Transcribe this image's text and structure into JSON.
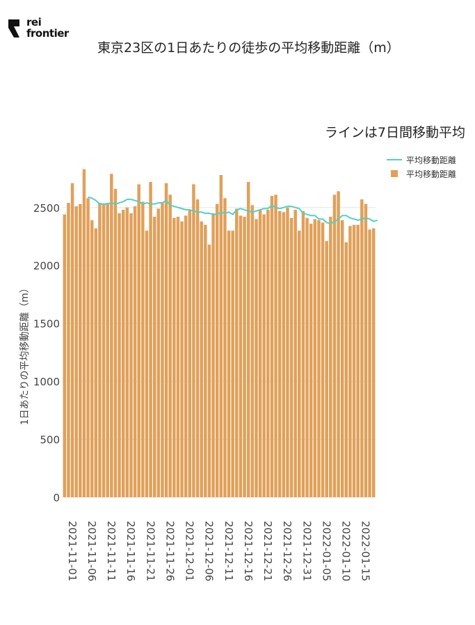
{
  "brand": {
    "name": "rei frontier",
    "line1": "rei",
    "line2": "frontier"
  },
  "title": "東京23区の1日あたりの徒歩の平均移動距離（m）",
  "subtitle": "ラインは7日間移動平均",
  "legend": {
    "line_label": "平均移動距離",
    "bar_label": "平均移動距離"
  },
  "colors": {
    "bar": "#e0a05a",
    "line": "#4fd1c5",
    "grid": "#e6e6e6"
  },
  "chart_data": {
    "type": "bar",
    "title": "東京23区の1日あたりの徒歩の平均移動距離（m）",
    "ylabel": "1日あたりの平均移動距離（m）",
    "ylim": [
      0,
      2900
    ],
    "yticks": [
      0,
      500,
      1000,
      1500,
      2000,
      2500
    ],
    "xtick_labels": [
      "2021-11-01",
      "2021-11-06",
      "2021-11-11",
      "2021-11-16",
      "2021-11-21",
      "2021-11-26",
      "2021-12-01",
      "2021-12-06",
      "2021-12-11",
      "2021-12-16",
      "2021-12-21",
      "2021-12-26",
      "2021-12-31",
      "2022-01-05",
      "2022-01-10",
      "2022-01-15"
    ],
    "start_label": "2021-11-01",
    "series": [
      {
        "name": "平均移動距離",
        "kind": "bar",
        "values": [
          2440,
          2540,
          2710,
          2510,
          2530,
          2830,
          2580,
          2390,
          2320,
          2540,
          2530,
          2540,
          2790,
          2660,
          2450,
          2480,
          2500,
          2450,
          2510,
          2700,
          2550,
          2300,
          2720,
          2420,
          2490,
          2540,
          2710,
          2610,
          2410,
          2420,
          2380,
          2430,
          2480,
          2700,
          2570,
          2380,
          2350,
          2180,
          2450,
          2530,
          2780,
          2580,
          2300,
          2300,
          2490,
          2430,
          2420,
          2720,
          2520,
          2400,
          2480,
          2440,
          2480,
          2600,
          2610,
          2470,
          2460,
          2500,
          2410,
          2480,
          2300,
          2470,
          2410,
          2360,
          2400,
          2390,
          2370,
          2210,
          2420,
          2610,
          2640,
          2390,
          2200,
          2340,
          2350,
          2350,
          2570,
          2530,
          2310,
          2320
        ]
      },
      {
        "name": "平均移動距離",
        "kind": "line",
        "start_index": 6,
        "values": [
          2590,
          2580,
          2560,
          2530,
          2530,
          2530,
          2540,
          2530,
          2540,
          2550,
          2570,
          2570,
          2560,
          2550,
          2530,
          2540,
          2530,
          2530,
          2540,
          2540,
          2560,
          2520,
          2510,
          2500,
          2490,
          2480,
          2480,
          2470,
          2460,
          2460,
          2450,
          2450,
          2440,
          2440,
          2460,
          2450,
          2460,
          2440,
          2480,
          2490,
          2480,
          2470,
          2460,
          2470,
          2480,
          2490,
          2490,
          2520,
          2500,
          2490,
          2500,
          2510,
          2510,
          2500,
          2490,
          2450,
          2440,
          2430,
          2430,
          2400,
          2400,
          2370,
          2360,
          2380,
          2400,
          2430,
          2430,
          2410,
          2400,
          2390,
          2400,
          2410,
          2400,
          2380,
          2390
        ]
      }
    ]
  }
}
